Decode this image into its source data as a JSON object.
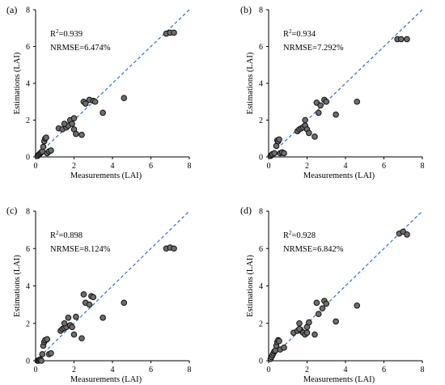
{
  "chart_data": [
    {
      "type": "scatter",
      "panel_label": "(a)",
      "xlabel": "Measurements (LAI)",
      "ylabel": "Estimations (LAI)",
      "xlim": [
        0,
        8
      ],
      "ylim": [
        0,
        8
      ],
      "xticks": [
        0,
        2,
        4,
        6,
        8
      ],
      "yticks": [
        0,
        2,
        4,
        6,
        8
      ],
      "annotations": {
        "r2_label": "R",
        "r2_sup": "2",
        "r2_value": "=0.939",
        "nrmse": "NRMSE=6.474%"
      },
      "reference_line": "1:1 dashed",
      "colors": {
        "marker_fill": "#6d6d6d",
        "marker_stroke": "#111111",
        "line": "#2f6fd0"
      },
      "x": [
        0.1,
        0.15,
        0.2,
        0.25,
        0.3,
        0.35,
        0.4,
        0.45,
        0.5,
        0.55,
        0.6,
        0.7,
        0.8,
        1.2,
        1.4,
        1.6,
        1.7,
        1.8,
        1.9,
        2.0,
        2.1,
        2.0,
        1.5,
        2.4,
        2.5,
        2.6,
        2.8,
        3.0,
        3.1,
        3.5,
        4.6,
        6.8,
        7.0,
        7.2
      ],
      "y": [
        0.05,
        0.1,
        0.15,
        0.2,
        0.25,
        0.3,
        0.55,
        0.85,
        1.0,
        1.05,
        0.2,
        0.3,
        0.35,
        1.55,
        1.5,
        1.6,
        1.7,
        2.0,
        1.8,
        1.5,
        1.25,
        2.1,
        1.8,
        1.2,
        3.0,
        2.9,
        3.1,
        3.05,
        3.0,
        2.4,
        3.2,
        6.7,
        6.75,
        6.75
      ]
    },
    {
      "type": "scatter",
      "panel_label": "(b)",
      "xlabel": "Measurements (LAI)",
      "ylabel": "Estimations (LAI)",
      "xlim": [
        0,
        8
      ],
      "ylim": [
        0,
        8
      ],
      "xticks": [
        0,
        2,
        4,
        6,
        8
      ],
      "yticks": [
        0,
        2,
        4,
        6,
        8
      ],
      "annotations": {
        "r2_label": "R",
        "r2_sup": "2",
        "r2_value": "=0.934",
        "nrmse": "NRMSE=7.292%"
      },
      "reference_line": "1:1 dashed",
      "colors": {
        "marker_fill": "#6d6d6d",
        "marker_stroke": "#111111",
        "line": "#2f6fd0"
      },
      "x": [
        0.1,
        0.15,
        0.2,
        0.3,
        0.4,
        0.45,
        0.5,
        0.55,
        0.6,
        0.7,
        0.8,
        1.5,
        1.6,
        1.7,
        1.8,
        1.9,
        2.0,
        2.1,
        1.9,
        2.4,
        2.5,
        2.6,
        2.7,
        2.9,
        3.0,
        3.5,
        4.6,
        6.7,
        6.9,
        7.2
      ],
      "y": [
        0.05,
        0.1,
        0.15,
        0.2,
        0.6,
        0.9,
        0.85,
        0.95,
        0.2,
        0.25,
        0.2,
        1.4,
        1.5,
        1.55,
        1.6,
        1.7,
        1.5,
        1.3,
        2.0,
        1.1,
        2.95,
        2.4,
        2.8,
        3.1,
        3.0,
        2.3,
        3.0,
        6.4,
        6.4,
        6.4
      ]
    },
    {
      "type": "scatter",
      "panel_label": "(c)",
      "xlabel": "Measurements (LAI)",
      "ylabel": "Estimations (LAI)",
      "xlim": [
        0,
        8
      ],
      "ylim": [
        0,
        8
      ],
      "xticks": [
        0,
        2,
        4,
        6,
        8
      ],
      "yticks": [
        0,
        2,
        4,
        6,
        8
      ],
      "annotations": {
        "r2_label": "R",
        "r2_sup": "2",
        "r2_value": "=0.898",
        "nrmse": "NRMSE=8.124%"
      },
      "reference_line": "1:1 dashed",
      "colors": {
        "marker_fill": "#6d6d6d",
        "marker_stroke": "#111111",
        "line": "#2f6fd0"
      },
      "x": [
        0.1,
        0.15,
        0.2,
        0.25,
        0.3,
        0.35,
        0.4,
        0.45,
        0.5,
        0.6,
        0.7,
        0.8,
        1.3,
        1.4,
        1.5,
        1.6,
        1.7,
        1.8,
        1.9,
        2.0,
        2.1,
        1.5,
        2.4,
        2.5,
        2.6,
        2.8,
        2.9,
        3.0,
        3.5,
        4.6,
        6.8,
        7.0,
        7.2
      ],
      "y": [
        0.0,
        0.0,
        0.05,
        0.05,
        0.0,
        0.35,
        0.8,
        1.0,
        1.1,
        1.15,
        0.35,
        0.4,
        1.6,
        1.7,
        1.75,
        1.8,
        2.3,
        1.9,
        1.8,
        1.4,
        2.35,
        2.0,
        1.2,
        3.55,
        3.1,
        3.0,
        3.45,
        3.4,
        2.3,
        3.1,
        6.0,
        6.05,
        6.0
      ]
    },
    {
      "type": "scatter",
      "panel_label": "(d)",
      "xlabel": "Measurements (LAI)",
      "ylabel": "Estimations (LAI)",
      "xlim": [
        0,
        8
      ],
      "ylim": [
        0,
        8
      ],
      "xticks": [
        0,
        2,
        4,
        6,
        8
      ],
      "yticks": [
        0,
        2,
        4,
        6,
        8
      ],
      "annotations": {
        "r2_label": "R",
        "r2_sup": "2",
        "r2_value": "=0.928",
        "nrmse": "NRMSE=6.842%"
      },
      "reference_line": "1:1 dashed",
      "colors": {
        "marker_fill": "#6d6d6d",
        "marker_stroke": "#111111",
        "line": "#2f6fd0"
      },
      "x": [
        0.1,
        0.15,
        0.2,
        0.25,
        0.3,
        0.35,
        0.4,
        0.45,
        0.5,
        0.55,
        0.6,
        0.8,
        1.3,
        1.5,
        1.6,
        1.7,
        1.8,
        1.9,
        2.0,
        2.1,
        1.6,
        2.0,
        2.4,
        2.5,
        2.6,
        2.8,
        2.9,
        3.0,
        3.5,
        4.6,
        6.8,
        7.0,
        7.2
      ],
      "y": [
        0.1,
        0.2,
        0.3,
        0.4,
        0.5,
        0.55,
        0.8,
        1.0,
        1.1,
        1.05,
        0.6,
        0.7,
        1.5,
        1.6,
        2.0,
        1.6,
        1.5,
        1.4,
        1.8,
        2.05,
        1.7,
        1.5,
        1.4,
        3.1,
        2.5,
        2.8,
        3.2,
        3.05,
        2.1,
        2.95,
        6.8,
        6.9,
        6.75
      ]
    }
  ]
}
